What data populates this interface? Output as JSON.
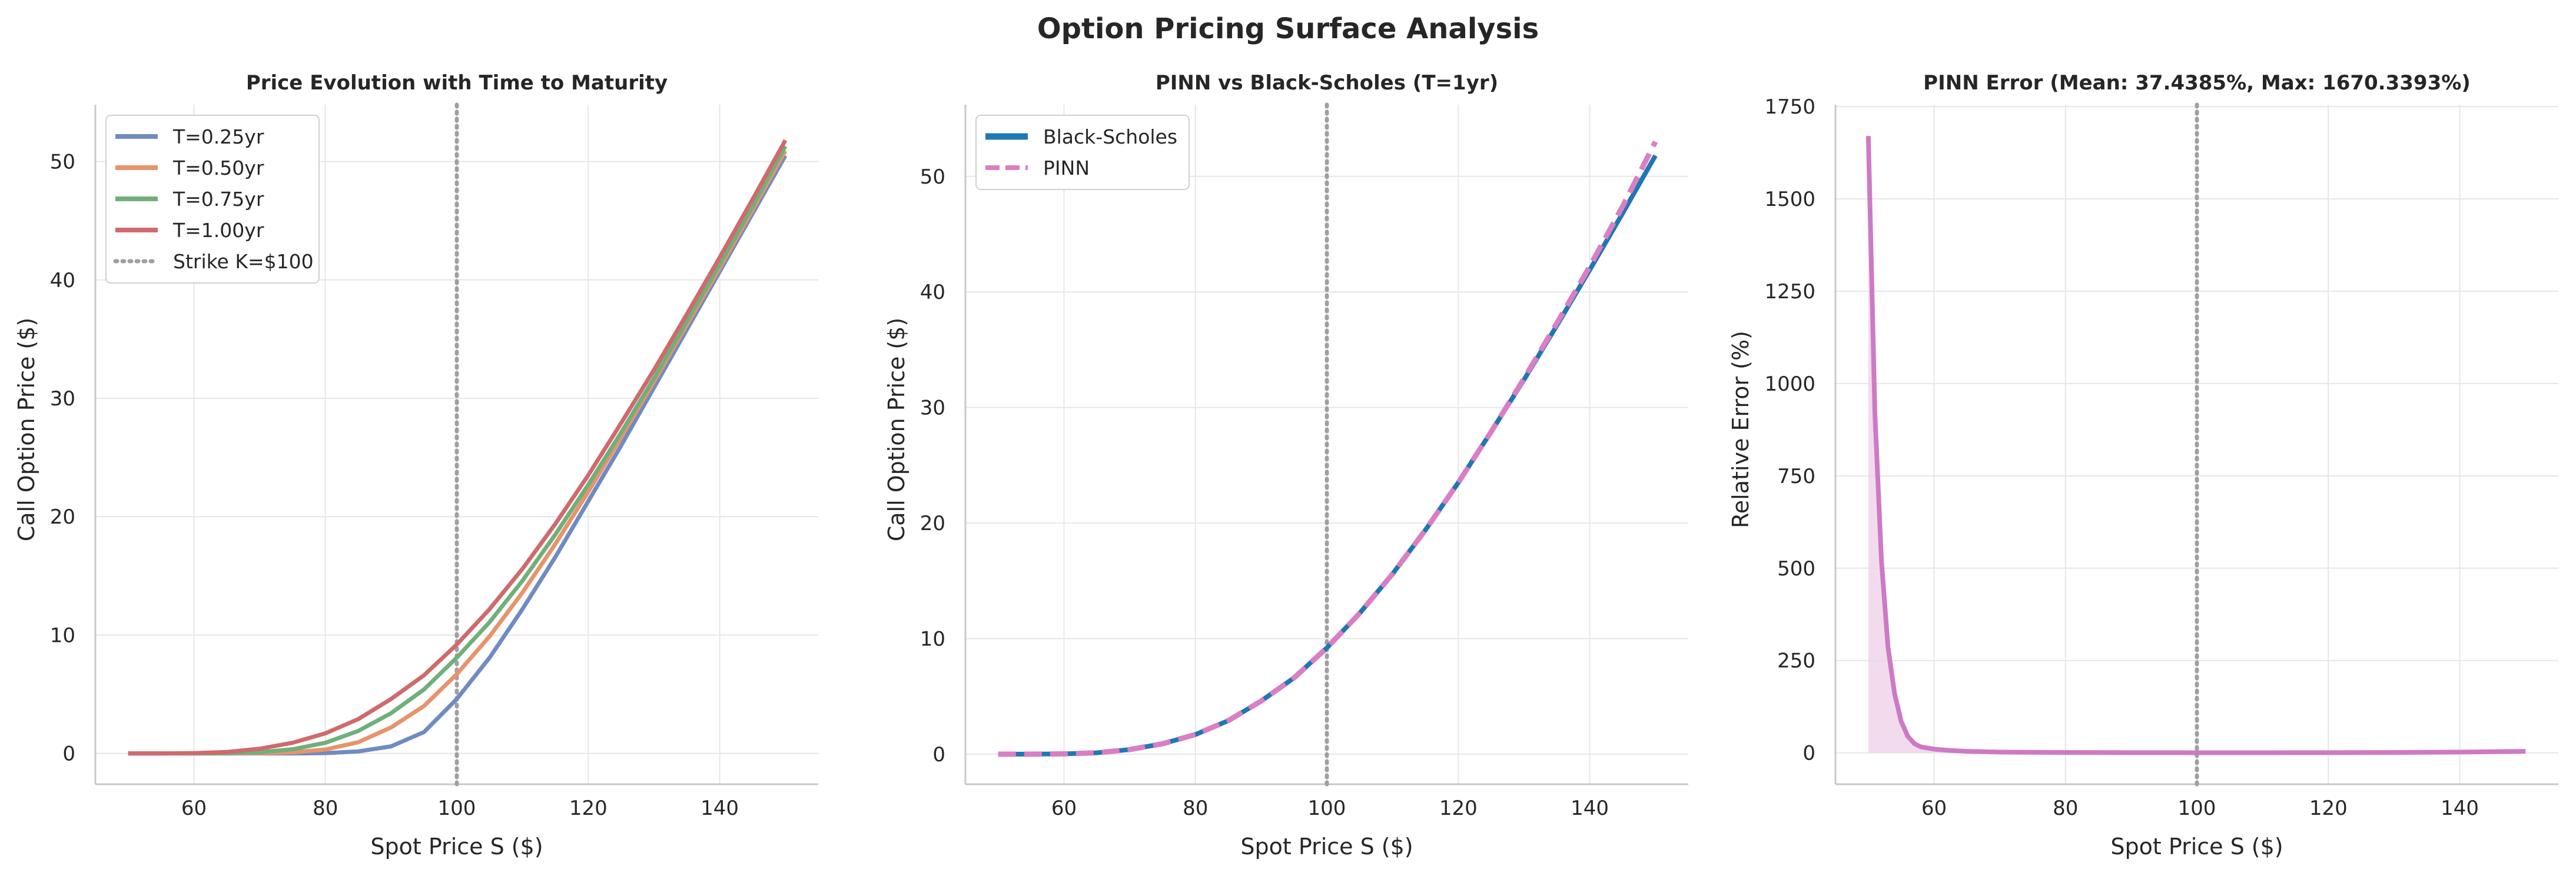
{
  "figure": {
    "suptitle": "Option Pricing Surface Analysis"
  },
  "colors": {
    "grid": "#e6e6e6",
    "spine": "#c8c8c8",
    "text": "#262626",
    "strike": "#a0a0a0",
    "legend_frame": "#d0d0d0"
  },
  "chart_data": [
    {
      "type": "line",
      "title": "Price Evolution with Time to Maturity",
      "xlabel": "Spot Price S ($)",
      "ylabel": "Call Option Price ($)",
      "xlim": [
        45,
        155
      ],
      "ylim": [
        -2.6,
        54.8
      ],
      "xticks": [
        60,
        80,
        100,
        120,
        140
      ],
      "yticks": [
        0,
        10,
        20,
        30,
        40,
        50
      ],
      "grid": true,
      "legend": "top-left",
      "x": [
        50,
        55,
        60,
        65,
        70,
        75,
        80,
        85,
        90,
        95,
        100,
        105,
        110,
        115,
        120,
        125,
        130,
        135,
        140,
        145,
        150
      ],
      "series": [
        {
          "name": "T=0.25yr",
          "color": "#6f8bc2",
          "values": [
            0.0,
            0.0,
            0.0,
            0.0,
            0.0,
            0.0,
            0.03,
            0.17,
            0.6,
            1.8,
            4.6,
            8.1,
            12.2,
            16.6,
            21.3,
            26.0,
            30.9,
            35.8,
            40.7,
            45.6,
            50.5
          ]
        },
        {
          "name": "T=0.50yr",
          "color": "#e8936b",
          "values": [
            0.0,
            0.0,
            0.0,
            0.0,
            0.02,
            0.09,
            0.33,
            0.95,
            2.2,
            4.0,
            6.7,
            9.9,
            13.6,
            17.7,
            22.1,
            26.7,
            31.4,
            36.2,
            41.0,
            45.9,
            50.9
          ]
        },
        {
          "name": "T=0.75yr",
          "color": "#6fb07a",
          "values": [
            0.0,
            0.0,
            0.0,
            0.02,
            0.1,
            0.35,
            0.9,
            1.9,
            3.4,
            5.4,
            8.1,
            11.1,
            14.6,
            18.5,
            22.7,
            27.1,
            31.7,
            36.5,
            41.3,
            46.2,
            51.3
          ]
        },
        {
          "name": "T=1.00yr",
          "color": "#cf6a6d",
          "values": [
            0.0,
            0.0,
            0.03,
            0.12,
            0.4,
            0.9,
            1.7,
            2.9,
            4.6,
            6.6,
            9.2,
            12.2,
            15.6,
            19.4,
            23.5,
            27.9,
            32.4,
            37.1,
            41.9,
            46.8,
            51.8
          ]
        }
      ],
      "annotations": [
        {
          "type": "vline",
          "x": 100,
          "label": "Strike K=$100"
        }
      ]
    },
    {
      "type": "line",
      "title": "PINN vs Black-Scholes (T=1yr)",
      "xlabel": "Spot Price S ($)",
      "ylabel": "Call Option Price ($)",
      "xlim": [
        45,
        155
      ],
      "ylim": [
        -2.6,
        56.2
      ],
      "xticks": [
        60,
        80,
        100,
        120,
        140
      ],
      "yticks": [
        0,
        10,
        20,
        30,
        40,
        50
      ],
      "grid": true,
      "legend": "top-left",
      "x": [
        50,
        55,
        60,
        65,
        70,
        75,
        80,
        85,
        90,
        95,
        100,
        105,
        110,
        115,
        120,
        125,
        130,
        135,
        140,
        145,
        150
      ],
      "series": [
        {
          "name": "Black-Scholes",
          "color": "#1f77b4",
          "style": "solid",
          "values": [
            0.0,
            0.0,
            0.03,
            0.12,
            0.4,
            0.9,
            1.7,
            2.9,
            4.6,
            6.6,
            9.2,
            12.2,
            15.6,
            19.4,
            23.5,
            27.9,
            32.4,
            37.1,
            41.9,
            46.8,
            51.8
          ]
        },
        {
          "name": "PINN",
          "color": "#d97fc4",
          "style": "dashed",
          "values": [
            0.0,
            0.0,
            0.03,
            0.12,
            0.4,
            0.9,
            1.7,
            2.9,
            4.6,
            6.6,
            9.2,
            12.2,
            15.6,
            19.4,
            23.5,
            27.9,
            32.5,
            37.3,
            42.2,
            47.4,
            53.0
          ]
        }
      ],
      "annotations": [
        {
          "type": "vline",
          "x": 100
        }
      ]
    },
    {
      "type": "area",
      "title": "PINN Error (Mean: 37.4385%, Max: 1670.3393%)",
      "xlabel": "Spot Price S ($)",
      "ylabel": "Relative Error (%)",
      "xlim": [
        45,
        155
      ],
      "ylim": [
        -85,
        1755
      ],
      "xticks": [
        60,
        80,
        100,
        120,
        140
      ],
      "yticks": [
        0,
        250,
        500,
        750,
        1000,
        1250,
        1500,
        1750
      ],
      "grid": true,
      "x": [
        50,
        51,
        52,
        53,
        54,
        55,
        56,
        57,
        58,
        60,
        62,
        65,
        70,
        80,
        90,
        100,
        110,
        120,
        130,
        140,
        150
      ],
      "series": [
        {
          "name": "Relative Error",
          "color": "#cd7ac6",
          "fill": "#f0d2ea",
          "values": [
            1670.3,
            920,
            520,
            285,
            160,
            85,
            45,
            25,
            16,
            10,
            7,
            4,
            2,
            1,
            0.5,
            0.3,
            0.3,
            0.5,
            1,
            2,
            4
          ]
        }
      ],
      "annotations": [
        {
          "type": "vline",
          "x": 100
        }
      ]
    }
  ]
}
